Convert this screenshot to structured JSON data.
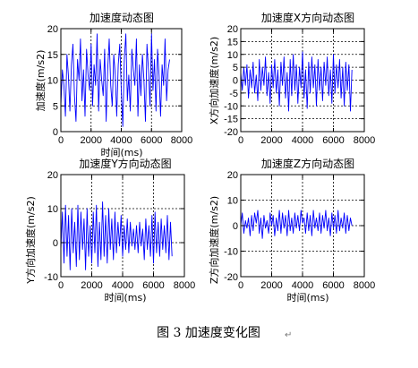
{
  "figure": {
    "caption": "图 3  加速度变化图",
    "caption_mark": "↵"
  },
  "chart_data": [
    {
      "type": "line",
      "title": "加速度动态图",
      "xlabel": "时间(ms)",
      "ylabel": "加速度(m/s2)",
      "xlim": [
        0,
        8000
      ],
      "ylim": [
        0,
        20
      ],
      "xticks": [
        0,
        2000,
        4000,
        6000,
        8000
      ],
      "yticks": [
        0,
        5,
        10,
        15,
        20
      ],
      "grid": "dotted",
      "color": "#0000ff",
      "series": [
        {
          "x": [
            0,
            100,
            200,
            300,
            400,
            500,
            600,
            700,
            800,
            900,
            1000,
            1100,
            1200,
            1300,
            1400,
            1500,
            1600,
            1700,
            1800,
            1900,
            2000,
            2100,
            2200,
            2300,
            2400,
            2500,
            2600,
            2700,
            2800,
            2900,
            3000,
            3100,
            3200,
            3300,
            3400,
            3500,
            3600,
            3700,
            3800,
            3900,
            4000,
            4100,
            4200,
            4300,
            4400,
            4500,
            4600,
            4700,
            4800,
            4900,
            5000,
            5100,
            5200,
            5300,
            5400,
            5500,
            5600,
            5700,
            5800,
            5900,
            6000,
            6100,
            6200,
            6300,
            6400,
            6500,
            6600,
            6700,
            6800,
            6900,
            7000,
            7100,
            7200
          ],
          "y": [
            5,
            12,
            9,
            3,
            15,
            11,
            4,
            13,
            17,
            7,
            2,
            14,
            10,
            18,
            6,
            12,
            3,
            16,
            11,
            8,
            17,
            5,
            13,
            9,
            19,
            4,
            14,
            10,
            7,
            16,
            2,
            12,
            18,
            9,
            5,
            15,
            11,
            3,
            13,
            17,
            8,
            1,
            14,
            19,
            6,
            11,
            4,
            16,
            12,
            9,
            18,
            3,
            13,
            7,
            15,
            10,
            2,
            17,
            12,
            5,
            19,
            8,
            14,
            4,
            16,
            11,
            3,
            13,
            9,
            18,
            6,
            12,
            14
          ]
        }
      ]
    },
    {
      "type": "line",
      "title": "加速度X方向动态图",
      "xlabel": "",
      "ylabel": "X方向加速度(m/s2)",
      "xlim": [
        0,
        8000
      ],
      "ylim": [
        -20,
        20
      ],
      "xticks": [
        0,
        2000,
        4000,
        6000,
        8000
      ],
      "yticks": [
        -20,
        -15,
        -10,
        -5,
        0,
        5,
        10,
        15,
        20
      ],
      "grid": "dotted",
      "color": "#0000ff",
      "series": [
        {
          "x": [
            0,
            100,
            200,
            300,
            400,
            500,
            600,
            700,
            800,
            900,
            1000,
            1100,
            1200,
            1300,
            1400,
            1500,
            1600,
            1700,
            1800,
            1900,
            2000,
            2100,
            2200,
            2300,
            2400,
            2500,
            2600,
            2700,
            2800,
            2900,
            3000,
            3100,
            3200,
            3300,
            3400,
            3500,
            3600,
            3700,
            3800,
            3900,
            4000,
            4100,
            4200,
            4300,
            4400,
            4500,
            4600,
            4700,
            4800,
            4900,
            5000,
            5100,
            5200,
            5300,
            5400,
            5500,
            5600,
            5700,
            5800,
            5900,
            6000,
            6100,
            6200,
            6300,
            6400,
            6500,
            6600,
            6700,
            6800,
            6900,
            7000,
            7100,
            7200
          ],
          "y": [
            3,
            -4,
            5,
            -2,
            6,
            -7,
            4,
            -3,
            7,
            -5,
            2,
            -8,
            8,
            -4,
            5,
            -2,
            9,
            -6,
            3,
            -9,
            6,
            -3,
            8,
            -5,
            4,
            -10,
            7,
            -2,
            9,
            -7,
            3,
            -12,
            8,
            -6,
            10,
            -4,
            6,
            -9,
            5,
            -3,
            11,
            -7,
            4,
            -11,
            7,
            -5,
            9,
            -3,
            6,
            -10,
            8,
            -4,
            5,
            -8,
            7,
            -2,
            9,
            -6,
            4,
            -9,
            10,
            -5,
            6,
            -3,
            8,
            -7,
            5,
            -10,
            7,
            -4,
            6,
            -12,
            4
          ]
        }
      ]
    },
    {
      "type": "line",
      "title": "加速度Y方向动态图",
      "xlabel": "时间(ms)",
      "ylabel": "Y方向加速度(m/s2)",
      "xlim": [
        0,
        8000
      ],
      "ylim": [
        -10,
        20
      ],
      "xticks": [
        0,
        2000,
        4000,
        6000,
        8000
      ],
      "yticks": [
        -10,
        0,
        10,
        20
      ],
      "grid": "dotted",
      "color": "#0000ff",
      "series": [
        {
          "x": [
            0,
            100,
            200,
            300,
            400,
            500,
            600,
            700,
            800,
            900,
            1000,
            1100,
            1200,
            1300,
            1400,
            1500,
            1600,
            1700,
            1800,
            1900,
            2000,
            2100,
            2200,
            2300,
            2400,
            2500,
            2600,
            2700,
            2800,
            2900,
            3000,
            3100,
            3200,
            3300,
            3400,
            3500,
            3600,
            3700,
            3800,
            3900,
            4000,
            4100,
            4200,
            4300,
            4400,
            4500,
            4600,
            4700,
            4800,
            4900,
            5000,
            5100,
            5200,
            5300,
            5400,
            5500,
            5600,
            5700,
            5800,
            5900,
            6000,
            6100,
            6200,
            6300,
            6400,
            6500,
            6600,
            6700,
            6800,
            6900,
            7000,
            7100,
            7200
          ],
          "y": [
            -2,
            9,
            -6,
            11,
            -4,
            8,
            -8,
            10,
            -3,
            6,
            -7,
            11,
            -5,
            9,
            -2,
            7,
            -8,
            10,
            -4,
            5,
            -6,
            9,
            -3,
            11,
            -7,
            6,
            -5,
            12,
            -4,
            8,
            -6,
            10,
            -2,
            7,
            -5,
            9,
            -3,
            6,
            -1,
            8,
            -4,
            5,
            -2,
            7,
            -3,
            6,
            -1,
            4,
            -2,
            5,
            -3,
            6,
            -1,
            4,
            -5,
            7,
            -2,
            5,
            -4,
            8,
            -6,
            9,
            -3,
            6,
            -4,
            7,
            -2,
            5,
            -3,
            8,
            -5,
            6,
            -4
          ]
        }
      ]
    },
    {
      "type": "line",
      "title": "加速度Z方向动态图",
      "xlabel": "时间(ms)",
      "ylabel": "Z方向加速度(m/s2)",
      "xlim": [
        0,
        8000
      ],
      "ylim": [
        -20,
        20
      ],
      "xticks": [
        0,
        2000,
        4000,
        6000,
        8000
      ],
      "yticks": [
        -20,
        -10,
        0,
        10,
        20
      ],
      "grid": "dotted",
      "color": "#0000ff",
      "series": [
        {
          "x": [
            0,
            100,
            200,
            300,
            400,
            500,
            600,
            700,
            800,
            900,
            1000,
            1100,
            1200,
            1300,
            1400,
            1500,
            1600,
            1700,
            1800,
            1900,
            2000,
            2100,
            2200,
            2300,
            2400,
            2500,
            2600,
            2700,
            2800,
            2900,
            3000,
            3100,
            3200,
            3300,
            3400,
            3500,
            3600,
            3700,
            3800,
            3900,
            4000,
            4100,
            4200,
            4300,
            4400,
            4500,
            4600,
            4700,
            4800,
            4900,
            5000,
            5100,
            5200,
            5300,
            5400,
            5500,
            5600,
            5700,
            5800,
            5900,
            6000,
            6100,
            6200,
            6300,
            6400,
            6500,
            6600,
            6700,
            6800,
            6900,
            7000,
            7100,
            7200
          ],
          "y": [
            0,
            5,
            -3,
            2,
            -1,
            3,
            -4,
            4,
            -2,
            5,
            1,
            6,
            -3,
            3,
            -5,
            4,
            -1,
            2,
            -3,
            5,
            0,
            4,
            -4,
            3,
            -2,
            6,
            -3,
            5,
            -1,
            4,
            -4,
            6,
            -2,
            3,
            -3,
            5,
            -1,
            4,
            -2,
            6,
            1,
            3,
            -3,
            5,
            -2,
            4,
            -4,
            6,
            -1,
            3,
            -2,
            5,
            -3,
            4,
            -1,
            6,
            -2,
            3,
            -4,
            5,
            -1,
            4,
            -3,
            6,
            -2,
            3,
            -1,
            5,
            -3,
            4,
            -2,
            3,
            0
          ]
        }
      ]
    }
  ]
}
